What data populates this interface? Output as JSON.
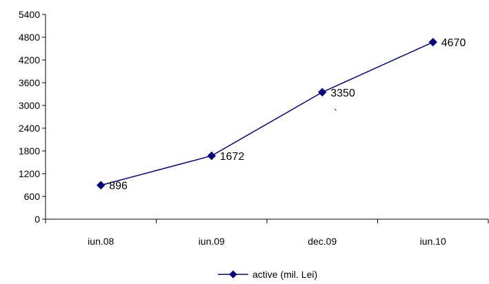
{
  "chart_data": {
    "type": "line",
    "categories": [
      "iun.08",
      "iun.09",
      "dec.09",
      "iun.10"
    ],
    "series": [
      {
        "name": "active (mil. Lei)",
        "values": [
          896,
          1672,
          3350,
          4670
        ]
      }
    ],
    "data_labels": [
      "896",
      "1672",
      "3350",
      "4670"
    ],
    "ylim": [
      0,
      5400
    ],
    "y_ticks": [
      0,
      600,
      1200,
      1800,
      2400,
      3000,
      3600,
      4200,
      4800,
      5400
    ],
    "grid": false,
    "legend_position": "bottom",
    "annotations": [
      "`"
    ],
    "colors": {
      "series": "#000080",
      "axis": "#000000"
    },
    "marker": "diamond"
  }
}
